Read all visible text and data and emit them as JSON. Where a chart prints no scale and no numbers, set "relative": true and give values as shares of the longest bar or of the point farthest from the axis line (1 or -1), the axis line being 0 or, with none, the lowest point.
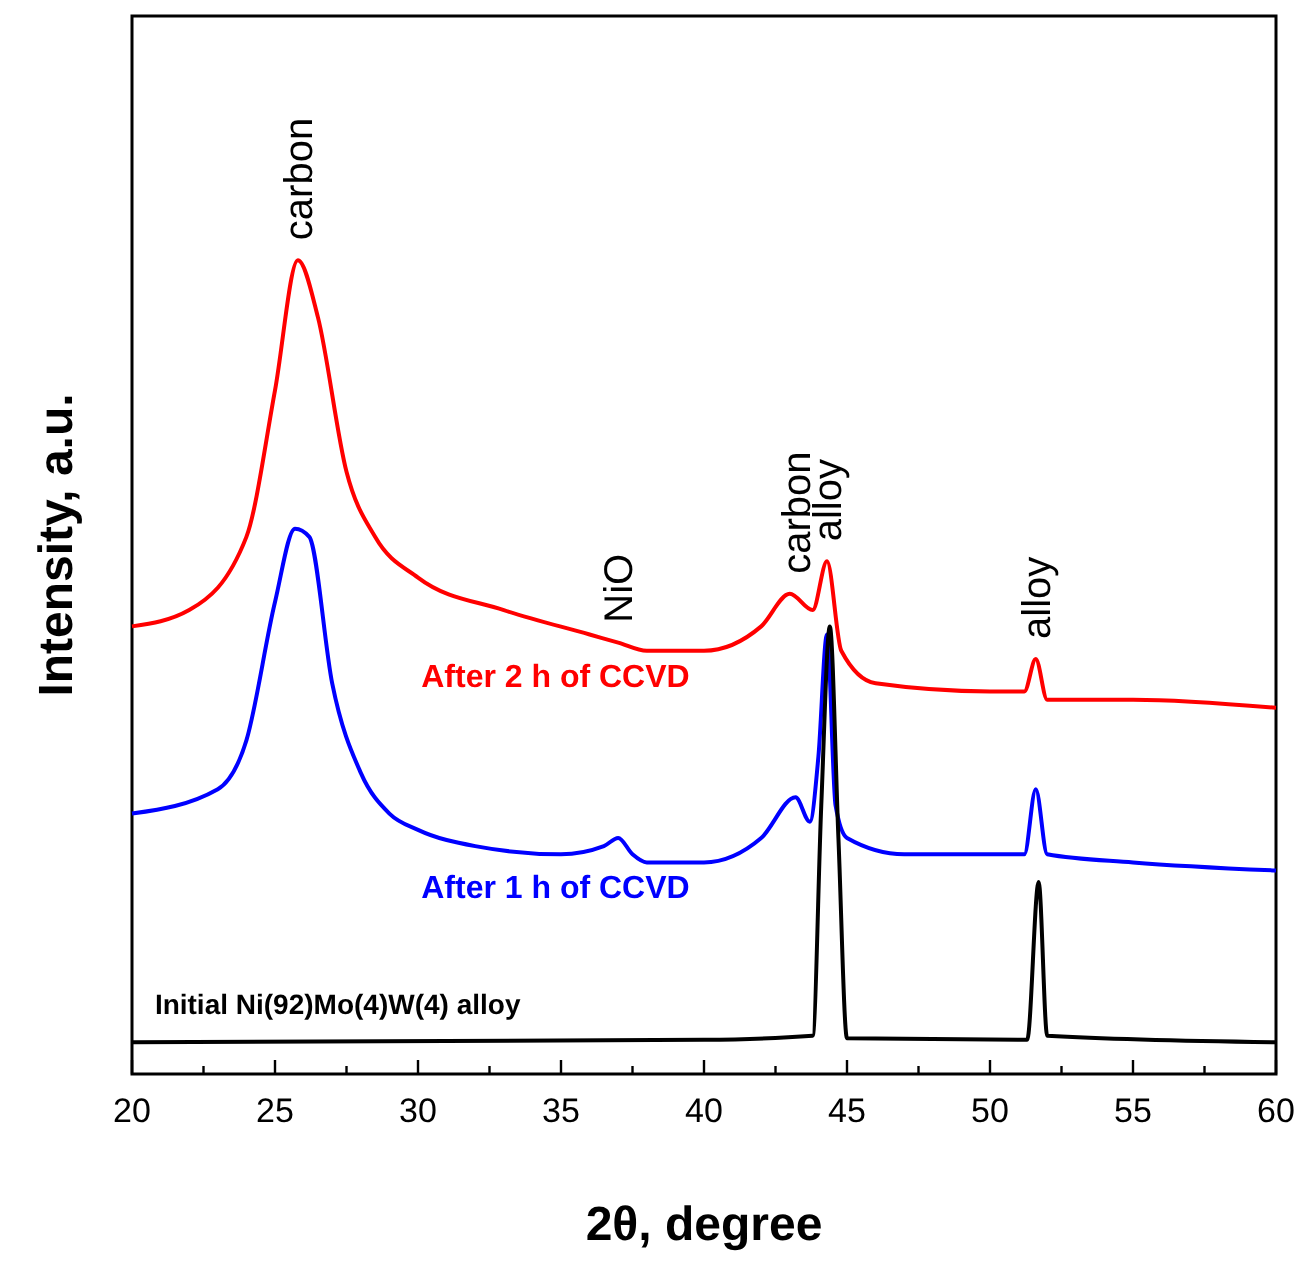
{
  "chart_data": {
    "type": "line",
    "relative": true,
    "xlabel": "2θ, degree",
    "ylabel": "Intensity, a.u.",
    "xlim": [
      20,
      60
    ],
    "xticks": [
      20,
      {
        "value": 22.5,
        "label": null
      },
      25,
      {
        "value": 27.5,
        "label": null
      },
      30,
      {
        "value": 32.5,
        "label": null
      },
      35,
      {
        "value": 37.5,
        "label": null
      },
      40,
      {
        "value": 42.5,
        "label": null
      },
      45,
      {
        "value": 47.5,
        "label": null
      },
      50,
      {
        "value": 52.5,
        "label": null
      },
      55,
      {
        "value": 57.5,
        "label": null
      },
      60
    ],
    "tick_labels": "x",
    "grid": false,
    "legend": false,
    "marker": "none",
    "line_style": "solid",
    "annotations": [
      {
        "text": "carbon",
        "x": 25.8,
        "y": 1.0
      },
      {
        "text": "NiO",
        "x": 37,
        "y": 0.53
      },
      {
        "text": "carbon",
        "x": 43.2,
        "y": 0.59
      },
      {
        "text": "alloy",
        "x": 44.3,
        "y": 0.63
      },
      {
        "text": "alloy",
        "x": 51.6,
        "y": 0.51
      }
    ],
    "series": [
      {
        "name": "After 2 h of CCVD",
        "color": "#ff0000",
        "x": [
          20,
          22,
          24,
          25,
          25.8,
          26.5,
          27.5,
          28.5,
          30,
          33,
          36,
          37,
          38,
          40,
          42,
          43,
          43.8,
          44.3,
          44.8,
          46,
          50,
          51.2,
          51.6,
          52,
          55,
          60
        ],
        "values": [
          0.55,
          0.57,
          0.66,
          0.84,
          1.0,
          0.93,
          0.74,
          0.66,
          0.61,
          0.57,
          0.54,
          0.53,
          0.52,
          0.52,
          0.55,
          0.59,
          0.57,
          0.63,
          0.52,
          0.48,
          0.47,
          0.47,
          0.51,
          0.46,
          0.46,
          0.45
        ]
      },
      {
        "name": "After 1 h of CCVD",
        "color": "#0000ff",
        "x": [
          20,
          23,
          24,
          25,
          25.7,
          26.2,
          27,
          28,
          29,
          30,
          32,
          35,
          36.5,
          37,
          37.5,
          38,
          40,
          42,
          43.2,
          43.7,
          44,
          44.3,
          44.6,
          45,
          47,
          50,
          51.2,
          51.6,
          52,
          55,
          60
        ],
        "values": [
          0.32,
          0.35,
          0.41,
          0.58,
          0.67,
          0.66,
          0.48,
          0.37,
          0.32,
          0.3,
          0.28,
          0.27,
          0.28,
          0.29,
          0.27,
          0.26,
          0.26,
          0.29,
          0.34,
          0.31,
          0.39,
          0.54,
          0.33,
          0.29,
          0.27,
          0.27,
          0.27,
          0.35,
          0.27,
          0.26,
          0.25
        ]
      },
      {
        "name": "Initial Ni(92)Mo(4)W(4) alloy",
        "color": "#000000",
        "x": [
          20,
          40,
          43.8,
          44.1,
          44.4,
          44.7,
          45,
          51.3,
          51.7,
          52,
          60
        ],
        "values": [
          0.039,
          0.042,
          0.047,
          0.33,
          0.55,
          0.29,
          0.044,
          0.042,
          0.236,
          0.047,
          0.039
        ]
      }
    ]
  }
}
